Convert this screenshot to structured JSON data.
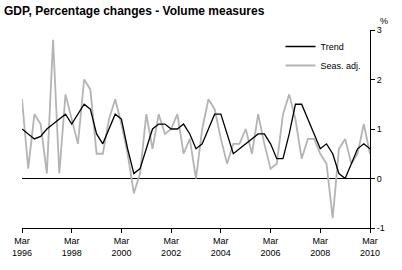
{
  "chart_data": {
    "type": "line",
    "title": "GDP, Percentage changes - Volume measures",
    "y_label": "%",
    "categories": [
      "Mar 1996",
      null,
      null,
      null,
      null,
      null,
      null,
      null,
      "Mar 1998",
      null,
      null,
      null,
      null,
      null,
      null,
      null,
      "Mar 2000",
      null,
      null,
      null,
      null,
      null,
      null,
      null,
      "Mar 2002",
      null,
      null,
      null,
      null,
      null,
      null,
      null,
      "Mar 2004",
      null,
      null,
      null,
      null,
      null,
      null,
      null,
      "Mar 2006",
      null,
      null,
      null,
      null,
      null,
      null,
      null,
      "Mar 2008",
      null,
      null,
      null,
      null,
      null,
      null,
      null,
      "Mar 2010"
    ],
    "series": [
      {
        "name": "Trend",
        "color": "#000000",
        "values": [
          1.0,
          0.9,
          0.8,
          0.85,
          1.0,
          1.1,
          1.2,
          1.3,
          1.1,
          1.3,
          1.5,
          1.4,
          0.9,
          0.7,
          1.0,
          1.3,
          1.2,
          0.6,
          0.1,
          0.2,
          0.6,
          1.0,
          1.1,
          1.1,
          1.0,
          1.0,
          1.1,
          0.9,
          0.6,
          0.7,
          1.0,
          1.3,
          1.3,
          0.9,
          0.5,
          0.6,
          0.7,
          0.8,
          0.9,
          0.9,
          0.7,
          0.4,
          0.4,
          0.9,
          1.5,
          1.5,
          1.2,
          0.9,
          0.6,
          0.7,
          0.5,
          0.1,
          0.0,
          0.3,
          0.6,
          0.7,
          0.6
        ]
      },
      {
        "name": "Seas. adj.",
        "color": "#b4b4b4",
        "values": [
          1.6,
          0.2,
          1.3,
          1.1,
          0.1,
          2.8,
          0.1,
          1.7,
          1.2,
          0.7,
          2.0,
          1.8,
          0.5,
          0.5,
          1.2,
          1.6,
          1.1,
          0.5,
          -0.3,
          0.1,
          1.3,
          0.6,
          1.3,
          0.9,
          1.0,
          1.3,
          0.5,
          0.8,
          0.0,
          1.0,
          1.6,
          1.4,
          0.8,
          0.3,
          0.7,
          0.7,
          1.0,
          0.5,
          1.3,
          0.7,
          0.2,
          0.3,
          1.3,
          1.7,
          1.2,
          0.4,
          0.8,
          0.8,
          0.5,
          0.3,
          -0.8,
          0.6,
          0.8,
          0.3,
          0.5,
          1.1,
          0.5
        ]
      }
    ],
    "ylim": [
      -1,
      3
    ],
    "yticks": [
      -1,
      0,
      1,
      2,
      3
    ],
    "grid": false,
    "legend": "top-right"
  }
}
